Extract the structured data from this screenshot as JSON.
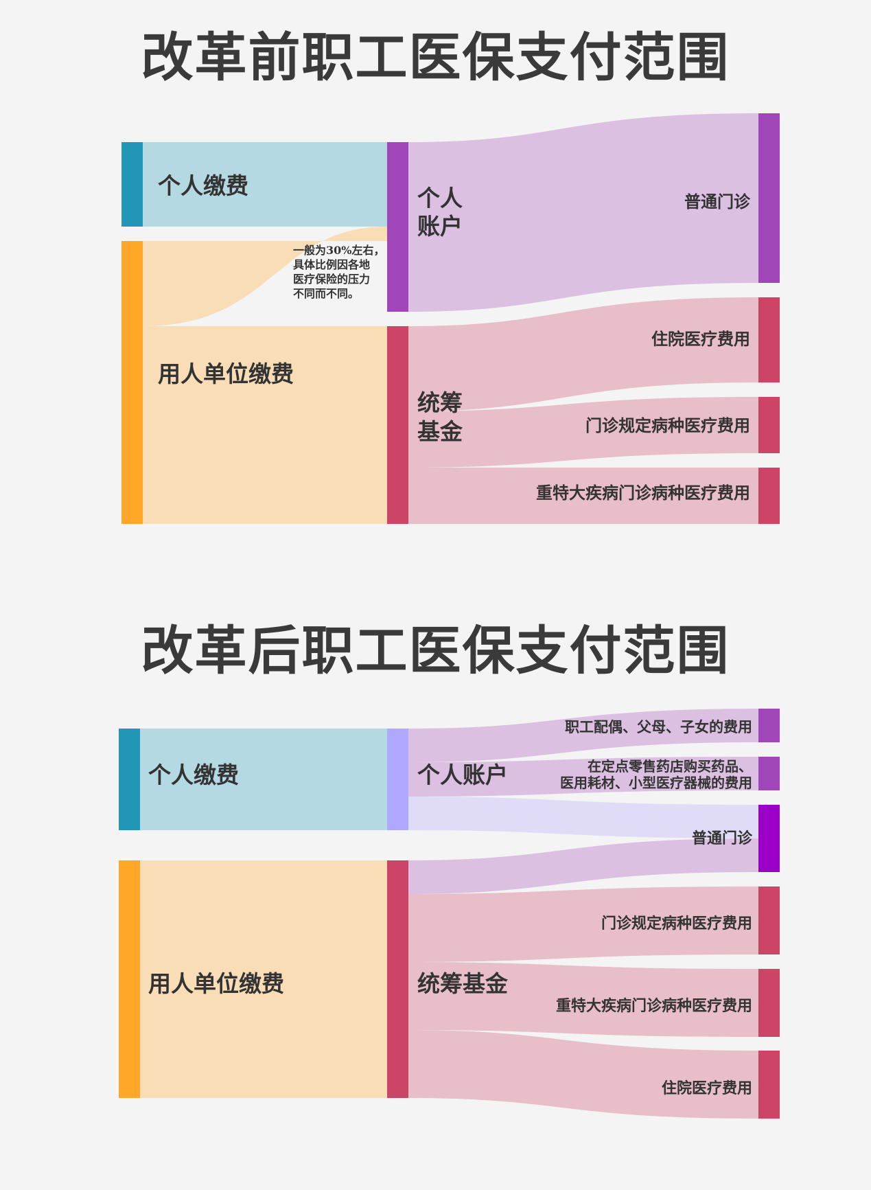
{
  "before": {
    "title": "改革前职工医保支付范围",
    "nodes": {
      "personal_contribution": {
        "label": "个人缴费",
        "color": "#2196b7"
      },
      "employer_contribution": {
        "label": "用人单位缴费",
        "color": "#ffa726"
      },
      "personal_account": {
        "label_line1": "个人",
        "label_line2": "账户",
        "color": "#a046b8"
      },
      "pooled_fund": {
        "label_line1": "统筹",
        "label_line2": "基金",
        "color": "#cc4466"
      },
      "outpatient": {
        "label": "普通门诊",
        "color": "#a046b8"
      },
      "inpatient": {
        "label": "住院医疗费用",
        "color": "#cc4466"
      },
      "specified_outpatient": {
        "label": "门诊规定病种医疗费用",
        "color": "#cc4466"
      },
      "serious_outpatient": {
        "label": "重特大疾病门诊病种医疗费用",
        "color": "#cc4466"
      }
    },
    "annotation": [
      "一般为30%左右，",
      "具体比例因各地",
      "医疗保险的压力",
      "不同而不同。"
    ]
  },
  "after": {
    "title": "改革后职工医保支付范围",
    "nodes": {
      "personal_contribution": {
        "label": "个人缴费",
        "color": "#2196b7"
      },
      "employer_contribution": {
        "label": "用人单位缴费",
        "color": "#ffa726"
      },
      "personal_account": {
        "label": "个人账户",
        "color": "#b0a8ff"
      },
      "pooled_fund": {
        "label": "统筹基金",
        "color": "#cc4466"
      },
      "family_expenses": {
        "label": "职工配偶、父母、子女的费用",
        "color": "#a046b8"
      },
      "pharmacy_expenses": {
        "label_line1": "在定点零售药店购买药品、",
        "label_line2": "医用耗材、小型医疗器械的费用",
        "color": "#a046b8"
      },
      "outpatient": {
        "label": "普通门诊",
        "color": "#9c00c8"
      },
      "specified_outpatient": {
        "label": "门诊规定病种医疗费用",
        "color": "#cc4466"
      },
      "serious_outpatient": {
        "label": "重特大疾病门诊病种医疗费用",
        "color": "#cc4466"
      },
      "inpatient": {
        "label": "住院医疗费用",
        "color": "#cc4466"
      }
    }
  },
  "colors": {
    "blue_flow": "#b5d9e3",
    "orange_flow": "#f8ddb6",
    "purple_flow": "#dcc0e2",
    "red_flow": "#e8bfc8",
    "lavender_flow": "#e0dcf8",
    "title_text": "#3a3a3a"
  },
  "chart_data": [
    {
      "type": "sankey",
      "title": "改革前职工医保支付范围",
      "links": [
        {
          "source": "个人缴费",
          "target": "个人账户",
          "value": 30
        },
        {
          "source": "用人单位缴费",
          "target": "个人账户",
          "value": 30
        },
        {
          "source": "用人单位缴费",
          "target": "统筹基金",
          "value": 70
        },
        {
          "source": "个人账户",
          "target": "普通门诊",
          "value": 60
        },
        {
          "source": "统筹基金",
          "target": "住院医疗费用",
          "value": 30
        },
        {
          "source": "统筹基金",
          "target": "门诊规定病种医疗费用",
          "value": 20
        },
        {
          "source": "统筹基金",
          "target": "重特大疾病门诊病种医疗费用",
          "value": 20
        }
      ]
    },
    {
      "type": "sankey",
      "title": "改革后职工医保支付范围",
      "links": [
        {
          "source": "个人缴费",
          "target": "个人账户",
          "value": 30
        },
        {
          "source": "用人单位缴费",
          "target": "统筹基金",
          "value": 70
        },
        {
          "source": "个人账户",
          "target": "职工配偶、父母、子女的费用",
          "value": 10
        },
        {
          "source": "个人账户",
          "target": "在定点零售药店购买药品、医用耗材、小型医疗器械的费用",
          "value": 10
        },
        {
          "source": "个人账户",
          "target": "普通门诊",
          "value": 10
        },
        {
          "source": "统筹基金",
          "target": "普通门诊",
          "value": 10
        },
        {
          "source": "统筹基金",
          "target": "门诊规定病种医疗费用",
          "value": 20
        },
        {
          "source": "统筹基金",
          "target": "重特大疾病门诊病种医疗费用",
          "value": 20
        },
        {
          "source": "统筹基金",
          "target": "住院医疗费用",
          "value": 20
        }
      ]
    }
  ]
}
